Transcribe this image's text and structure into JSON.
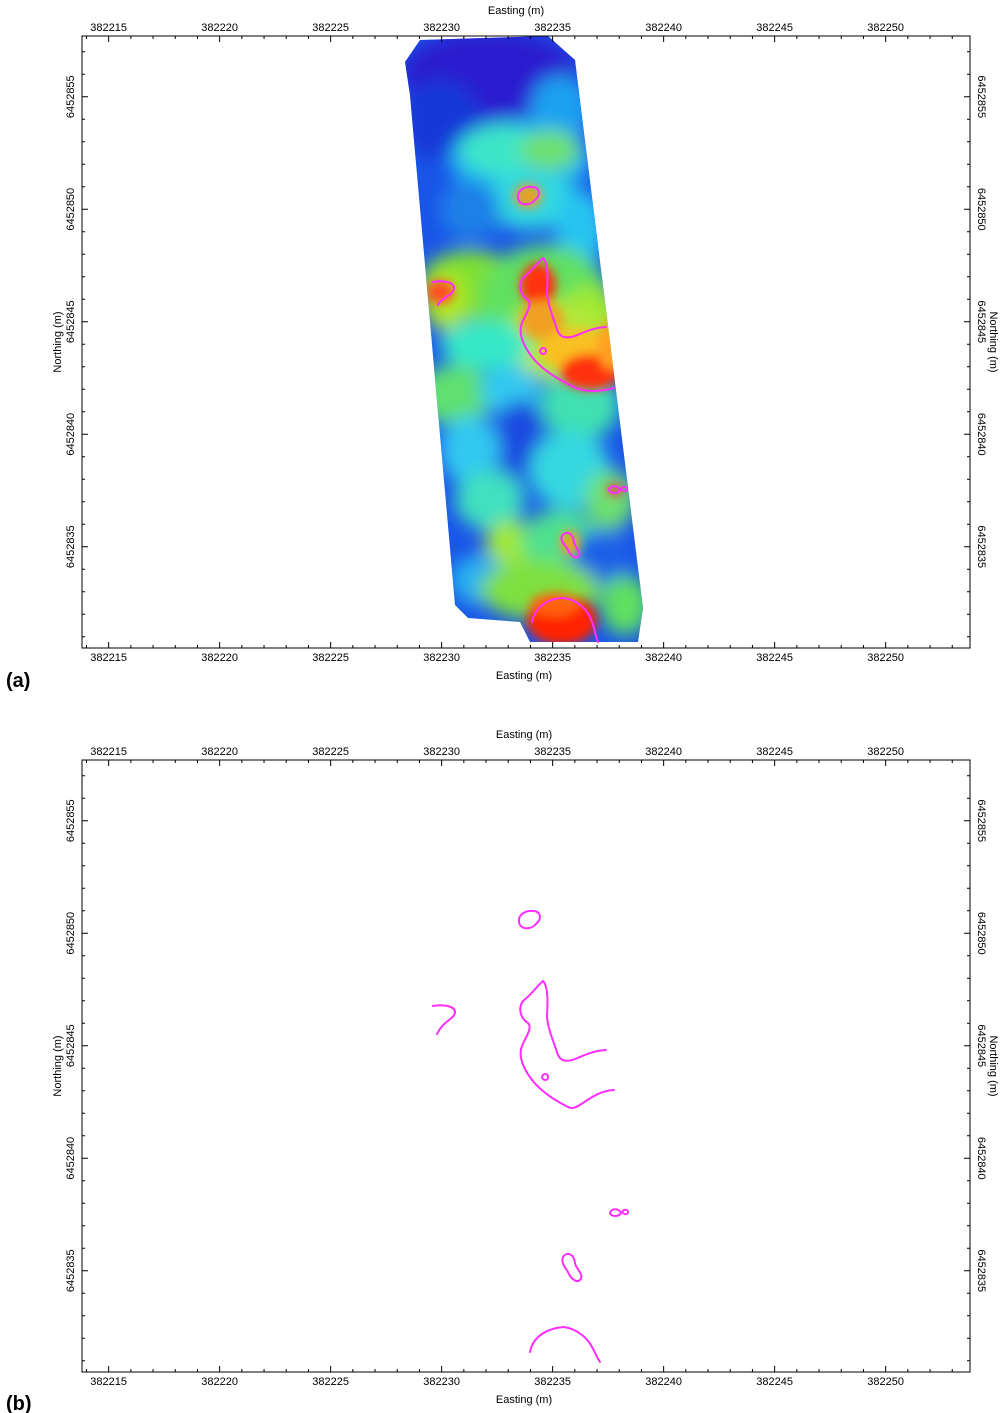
{
  "panels": [
    {
      "id": "a",
      "label": "(a)",
      "x_axis_title": "Easting (m)",
      "y_axis_title": "Northing (m)",
      "x_ticks": [
        382215,
        382220,
        382225,
        382230,
        382235,
        382240,
        382245,
        382250
      ],
      "y_ticks": [
        6452835,
        6452840,
        6452845,
        6452850,
        6452855
      ],
      "xlim": [
        382213.8,
        382253.8
      ],
      "ylim": [
        6452830.5,
        6452857.7
      ],
      "content": "survey-grid-with-contours"
    },
    {
      "id": "b",
      "label": "(b)",
      "x_axis_title": "Easting (m)",
      "y_axis_title": "Northing (m)",
      "x_ticks": [
        382215,
        382220,
        382225,
        382230,
        382235,
        382240,
        382245,
        382250
      ],
      "y_ticks": [
        6452835,
        6452840,
        6452845,
        6452850,
        6452855
      ],
      "xlim": [
        382213.8,
        382253.8
      ],
      "ylim": [
        6452830.5,
        6452857.7
      ],
      "content": "contours-only"
    }
  ],
  "colors": {
    "contour": "#ff2dff",
    "low": "#1030d8",
    "mid_low": "#26c8f0",
    "mid": "#36f0c0",
    "mid_high": "#7ee830",
    "high": "#f0e020",
    "peak": "#ff2000"
  }
}
